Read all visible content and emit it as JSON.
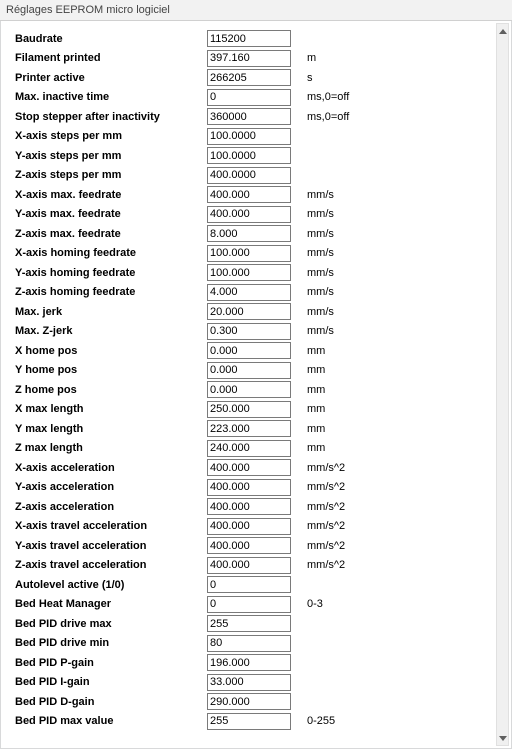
{
  "window_title": "Réglages EEPROM micro logiciel",
  "rows": [
    {
      "label": "Baudrate",
      "value": "115200",
      "unit": ""
    },
    {
      "label": "Filament printed",
      "value": "397.160",
      "unit": "m"
    },
    {
      "label": "Printer active",
      "value": "266205",
      "unit": "s"
    },
    {
      "label": "Max. inactive time",
      "value": "0",
      "unit": "ms,0=off"
    },
    {
      "label": "Stop stepper after inactivity",
      "value": "360000",
      "unit": "ms,0=off"
    },
    {
      "label": "X-axis steps per mm",
      "value": "100.0000",
      "unit": ""
    },
    {
      "label": "Y-axis steps per mm",
      "value": "100.0000",
      "unit": ""
    },
    {
      "label": "Z-axis steps per mm",
      "value": "400.0000",
      "unit": ""
    },
    {
      "label": "X-axis max. feedrate",
      "value": "400.000",
      "unit": "mm/s"
    },
    {
      "label": "Y-axis max. feedrate",
      "value": "400.000",
      "unit": "mm/s"
    },
    {
      "label": "Z-axis max. feedrate",
      "value": "8.000",
      "unit": "mm/s"
    },
    {
      "label": "X-axis homing feedrate",
      "value": "100.000",
      "unit": "mm/s"
    },
    {
      "label": "Y-axis homing feedrate",
      "value": "100.000",
      "unit": "mm/s"
    },
    {
      "label": "Z-axis homing feedrate",
      "value": "4.000",
      "unit": "mm/s"
    },
    {
      "label": "Max. jerk",
      "value": "20.000",
      "unit": "mm/s"
    },
    {
      "label": "Max. Z-jerk",
      "value": "0.300",
      "unit": "mm/s"
    },
    {
      "label": "X home pos",
      "value": "0.000",
      "unit": "mm"
    },
    {
      "label": "Y home pos",
      "value": "0.000",
      "unit": "mm"
    },
    {
      "label": "Z home pos",
      "value": "0.000",
      "unit": "mm"
    },
    {
      "label": "X max length",
      "value": "250.000",
      "unit": "mm"
    },
    {
      "label": "Y max length",
      "value": "223.000",
      "unit": "mm"
    },
    {
      "label": "Z max length",
      "value": "240.000",
      "unit": "mm"
    },
    {
      "label": "X-axis acceleration",
      "value": "400.000",
      "unit": "mm/s^2"
    },
    {
      "label": "Y-axis acceleration",
      "value": "400.000",
      "unit": "mm/s^2"
    },
    {
      "label": "Z-axis acceleration",
      "value": "400.000",
      "unit": "mm/s^2"
    },
    {
      "label": "X-axis travel acceleration",
      "value": "400.000",
      "unit": "mm/s^2"
    },
    {
      "label": "Y-axis travel acceleration",
      "value": "400.000",
      "unit": "mm/s^2"
    },
    {
      "label": "Z-axis travel acceleration",
      "value": "400.000",
      "unit": "mm/s^2"
    },
    {
      "label": "Autolevel active (1/0)",
      "value": "0",
      "unit": ""
    },
    {
      "label": "Bed Heat Manager",
      "value": "0",
      "unit": "0-3"
    },
    {
      "label": "Bed PID drive max",
      "value": "255",
      "unit": ""
    },
    {
      "label": "Bed PID drive min",
      "value": "80",
      "unit": ""
    },
    {
      "label": "Bed PID P-gain",
      "value": "196.000",
      "unit": ""
    },
    {
      "label": "Bed PID I-gain",
      "value": "33.000",
      "unit": ""
    },
    {
      "label": "Bed PID D-gain",
      "value": "290.000",
      "unit": ""
    },
    {
      "label": "Bed PID max value",
      "value": "255",
      "unit": "0-255"
    }
  ]
}
